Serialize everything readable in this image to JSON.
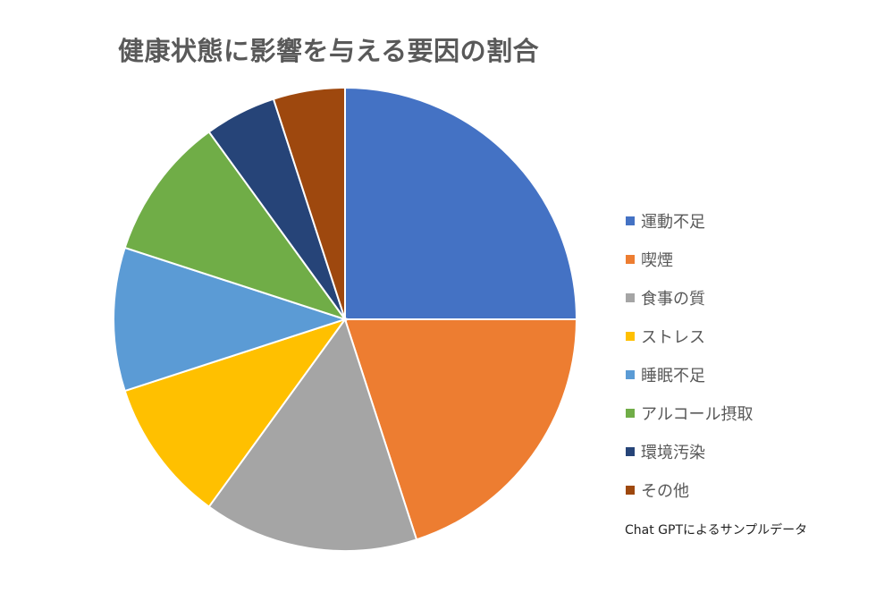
{
  "chart_data": {
    "type": "pie",
    "title": "健康状態に影響を与える要因の割合",
    "categories": [
      "運動不足",
      "喫煙",
      "食事の質",
      "ストレス",
      "睡眠不足",
      "アルコール摂取",
      "環境汚染",
      "その他"
    ],
    "values": [
      25,
      20,
      15,
      10,
      10,
      10,
      5,
      5
    ],
    "colors": [
      "#4472C4",
      "#ED7D31",
      "#A5A5A5",
      "#FFC000",
      "#5B9BD5",
      "#70AD47",
      "#264478",
      "#9E480E"
    ],
    "legend": "right",
    "start": "top, clockwise"
  },
  "footnote": "Chat GPTによるサンプルデータ"
}
